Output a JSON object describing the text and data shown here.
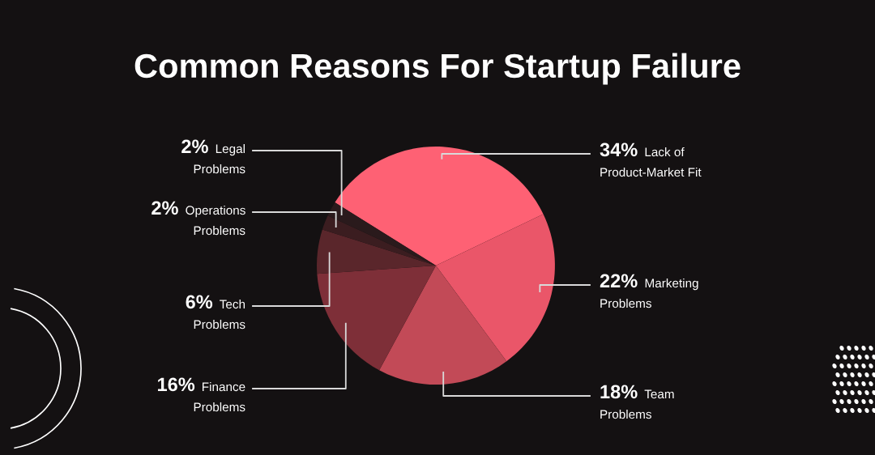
{
  "chart_data": {
    "type": "pie",
    "title": "Common Reasons For Startup Failure",
    "categories": [
      "Lack of\nProduct-Market Fit",
      "Marketing\nProblems",
      "Team\nProblems",
      "Finance\nProblems",
      "Tech\nProblems",
      "Operations\nProblems",
      "Legal\nProblems"
    ],
    "values": [
      34,
      22,
      18,
      16,
      6,
      2,
      2
    ],
    "value_labels": [
      "34%",
      "22%",
      "18%",
      "16%",
      "6%",
      "2%",
      "2%"
    ],
    "colors": [
      "#fe6174",
      "#ea5669",
      "#c24a57",
      "#7e2f38",
      "#5a262b",
      "#3b1d20",
      "#2a1a1c"
    ]
  }
}
